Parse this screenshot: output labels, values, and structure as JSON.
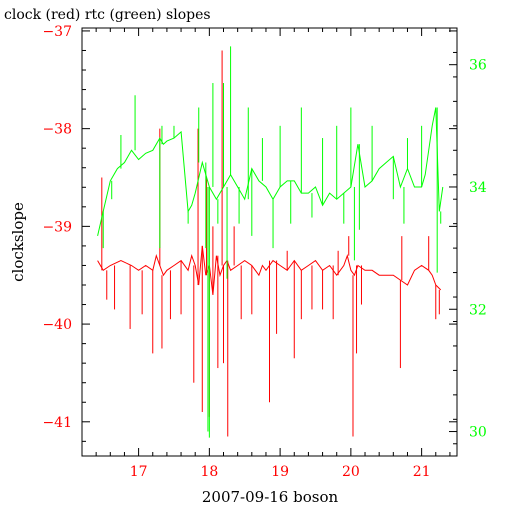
{
  "chart_data": {
    "type": "line",
    "title": "clock (red) rtc (green) slopes",
    "xlabel": "2007-09-16 boson",
    "ylabel": "clockslope",
    "xlim": [
      16.2,
      21.5
    ],
    "x_ticks": [
      "17",
      "18",
      "19",
      "20",
      "21"
    ],
    "x_tick_values": [
      17,
      18,
      19,
      20,
      21
    ],
    "y_left": {
      "lim": [
        -41.35,
        -36.97
      ],
      "ticks": [
        "−41",
        "−40",
        "−39",
        "−38",
        "−37"
      ],
      "tick_values": [
        -41,
        -40,
        -39,
        -38,
        -37
      ],
      "color": "#ff0000"
    },
    "y_right": {
      "lim": [
        29.6,
        36.6
      ],
      "ticks": [
        "30",
        "32",
        "34",
        "36"
      ],
      "tick_values": [
        30,
        32,
        34,
        36
      ],
      "color": "#00ff00"
    },
    "grid": false,
    "colors": {
      "red": "#ff0000",
      "green": "#00ff00",
      "axis": "#000000"
    },
    "series": [
      {
        "color": "#ff0000",
        "axis": "left",
        "x": [
          16.42,
          16.5,
          16.6,
          16.75,
          16.9,
          17.0,
          17.1,
          17.2,
          17.25,
          17.3,
          17.35,
          17.4,
          17.5,
          17.6,
          17.7,
          17.75,
          17.8,
          17.85,
          17.9,
          17.95,
          18.0,
          18.05,
          18.1,
          18.15,
          18.2,
          18.25,
          18.3,
          18.4,
          18.5,
          18.6,
          18.7,
          18.75,
          18.8,
          18.9,
          19.0,
          19.1,
          19.15,
          19.2,
          19.3,
          19.4,
          19.5,
          19.6,
          19.7,
          19.8,
          19.9,
          19.95,
          20.0,
          20.05,
          20.1,
          20.2,
          20.3,
          20.4,
          20.5,
          20.6,
          20.7,
          20.8,
          20.9,
          21.0,
          21.1,
          21.15,
          21.2,
          21.27
        ],
        "y": [
          -39.35,
          -39.45,
          -39.4,
          -39.35,
          -39.4,
          -39.45,
          -39.4,
          -39.45,
          -39.3,
          -39.4,
          -39.5,
          -39.45,
          -39.4,
          -39.35,
          -39.45,
          -39.3,
          -39.4,
          -39.6,
          -39.2,
          -39.5,
          -39.4,
          -39.7,
          -39.3,
          -39.5,
          -39.4,
          -39.35,
          -39.45,
          -39.4,
          -39.35,
          -39.4,
          -39.5,
          -39.4,
          -39.45,
          -39.35,
          -39.4,
          -39.45,
          -39.4,
          -39.35,
          -39.45,
          -39.4,
          -39.35,
          -39.45,
          -39.4,
          -39.5,
          -39.4,
          -39.3,
          -39.45,
          -39.5,
          -39.4,
          -39.45,
          -39.45,
          -39.5,
          -39.5,
          -39.5,
          -39.55,
          -39.6,
          -39.45,
          -39.4,
          -39.45,
          -39.5,
          -39.6,
          -39.65
        ],
        "spikes": [
          {
            "x": 16.48,
            "y": -38.5
          },
          {
            "x": 16.55,
            "y": -39.75
          },
          {
            "x": 16.66,
            "y": -39.85
          },
          {
            "x": 16.73,
            "y": -39.35
          },
          {
            "x": 16.88,
            "y": -40.05
          },
          {
            "x": 17.05,
            "y": -39.9
          },
          {
            "x": 17.2,
            "y": -40.3
          },
          {
            "x": 17.3,
            "y": -38.0
          },
          {
            "x": 17.33,
            "y": -40.25
          },
          {
            "x": 17.45,
            "y": -39.95
          },
          {
            "x": 17.6,
            "y": -39.9
          },
          {
            "x": 17.78,
            "y": -40.6
          },
          {
            "x": 17.84,
            "y": -38.0
          },
          {
            "x": 17.9,
            "y": -40.9
          },
          {
            "x": 17.96,
            "y": -38.5
          },
          {
            "x": 18.0,
            "y": -40.95
          },
          {
            "x": 18.05,
            "y": -39.0
          },
          {
            "x": 18.12,
            "y": -40.45
          },
          {
            "x": 18.18,
            "y": -37.2
          },
          {
            "x": 18.2,
            "y": -40.4
          },
          {
            "x": 18.26,
            "y": -41.15
          },
          {
            "x": 18.35,
            "y": -39.0
          },
          {
            "x": 18.45,
            "y": -39.95
          },
          {
            "x": 18.6,
            "y": -39.9
          },
          {
            "x": 18.85,
            "y": -40.8
          },
          {
            "x": 18.95,
            "y": -40.1
          },
          {
            "x": 19.1,
            "y": -39.25
          },
          {
            "x": 19.2,
            "y": -40.35
          },
          {
            "x": 19.3,
            "y": -39.95
          },
          {
            "x": 19.45,
            "y": -39.85
          },
          {
            "x": 19.6,
            "y": -39.85
          },
          {
            "x": 19.75,
            "y": -39.95
          },
          {
            "x": 19.82,
            "y": -39.25
          },
          {
            "x": 19.97,
            "y": -39.1
          },
          {
            "x": 20.03,
            "y": -41.15
          },
          {
            "x": 20.08,
            "y": -40.3
          },
          {
            "x": 20.15,
            "y": -39.8
          },
          {
            "x": 20.7,
            "y": -40.45
          },
          {
            "x": 20.72,
            "y": -39.1
          },
          {
            "x": 21.1,
            "y": -39.1
          },
          {
            "x": 21.2,
            "y": -39.95
          },
          {
            "x": 21.25,
            "y": -39.9
          }
        ]
      },
      {
        "color": "#00ff00",
        "axis": "right",
        "x": [
          16.42,
          16.5,
          16.6,
          16.7,
          16.8,
          16.9,
          17.0,
          17.1,
          17.2,
          17.3,
          17.35,
          17.4,
          17.5,
          17.6,
          17.7,
          17.75,
          17.8,
          17.9,
          18.0,
          18.1,
          18.2,
          18.3,
          18.4,
          18.5,
          18.6,
          18.7,
          18.8,
          18.9,
          19.0,
          19.1,
          19.2,
          19.3,
          19.4,
          19.5,
          19.6,
          19.7,
          19.8,
          19.9,
          20.0,
          20.1,
          20.2,
          20.3,
          20.4,
          20.5,
          20.6,
          20.7,
          20.8,
          20.9,
          21.0,
          21.05,
          21.1,
          21.15,
          21.2,
          21.25,
          21.3
        ],
        "y": [
          33.2,
          33.6,
          34.1,
          34.3,
          34.4,
          34.6,
          34.45,
          34.55,
          34.6,
          34.8,
          34.7,
          34.75,
          34.8,
          34.9,
          33.6,
          33.7,
          33.9,
          34.4,
          34.0,
          33.8,
          34.0,
          34.2,
          34.0,
          33.8,
          34.3,
          34.1,
          34.0,
          33.8,
          34.0,
          34.1,
          34.1,
          33.9,
          33.9,
          34.0,
          33.7,
          33.9,
          33.8,
          33.9,
          34.0,
          34.7,
          34.0,
          34.1,
          34.3,
          34.4,
          34.5,
          34.0,
          34.3,
          34.0,
          34.0,
          34.2,
          34.6,
          35.0,
          35.3,
          33.6,
          34.0
        ],
        "spikes": [
          {
            "x": 16.5,
            "y": 33.0
          },
          {
            "x": 16.62,
            "y": 33.8
          },
          {
            "x": 16.75,
            "y": 34.85
          },
          {
            "x": 16.95,
            "y": 35.5
          },
          {
            "x": 17.3,
            "y": 33.0
          },
          {
            "x": 17.33,
            "y": 35.0
          },
          {
            "x": 17.5,
            "y": 35.0
          },
          {
            "x": 17.7,
            "y": 33.4
          },
          {
            "x": 17.85,
            "y": 35.3
          },
          {
            "x": 17.95,
            "y": 33.0
          },
          {
            "x": 17.98,
            "y": 30.0
          },
          {
            "x": 18.0,
            "y": 29.9
          },
          {
            "x": 18.05,
            "y": 35.7
          },
          {
            "x": 18.12,
            "y": 33.4
          },
          {
            "x": 18.2,
            "y": 35.7
          },
          {
            "x": 18.25,
            "y": 32.5
          },
          {
            "x": 18.3,
            "y": 36.3
          },
          {
            "x": 18.42,
            "y": 33.4
          },
          {
            "x": 18.55,
            "y": 35.3
          },
          {
            "x": 18.6,
            "y": 33.2
          },
          {
            "x": 18.75,
            "y": 34.8
          },
          {
            "x": 18.9,
            "y": 33.0
          },
          {
            "x": 19.0,
            "y": 35.0
          },
          {
            "x": 19.15,
            "y": 33.4
          },
          {
            "x": 19.3,
            "y": 35.3
          },
          {
            "x": 19.45,
            "y": 33.5
          },
          {
            "x": 19.6,
            "y": 34.8
          },
          {
            "x": 19.8,
            "y": 35.0
          },
          {
            "x": 19.9,
            "y": 33.4
          },
          {
            "x": 20.0,
            "y": 35.3
          },
          {
            "x": 20.05,
            "y": 32.8
          },
          {
            "x": 20.12,
            "y": 33.3
          },
          {
            "x": 20.3,
            "y": 35.0
          },
          {
            "x": 20.6,
            "y": 33.8
          },
          {
            "x": 20.75,
            "y": 33.4
          },
          {
            "x": 20.8,
            "y": 34.8
          },
          {
            "x": 21.0,
            "y": 35.0
          },
          {
            "x": 21.22,
            "y": 32.6
          },
          {
            "x": 21.27,
            "y": 33.4
          }
        ]
      }
    ]
  }
}
